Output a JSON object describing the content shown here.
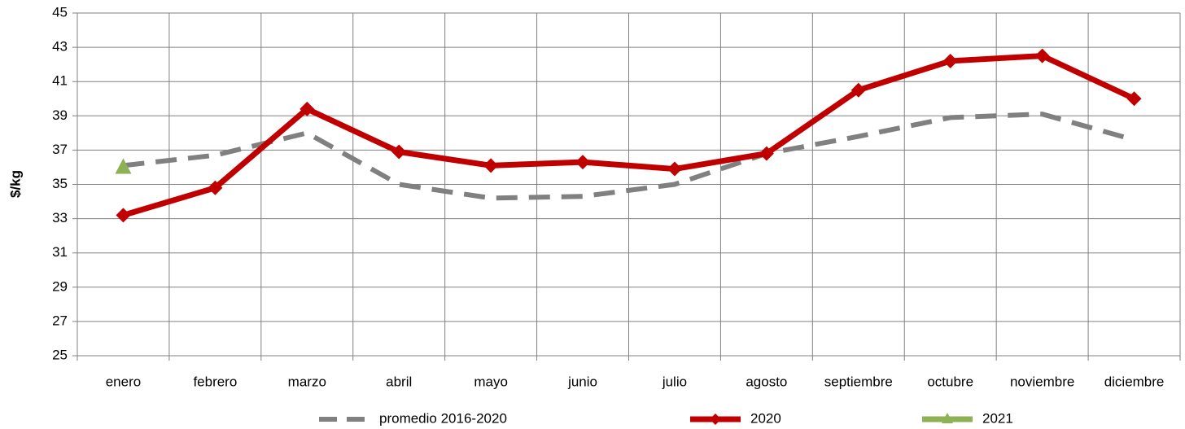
{
  "chart_data": {
    "type": "line",
    "y_label": "$/kg",
    "categories": [
      "enero",
      "febrero",
      "marzo",
      "abril",
      "mayo",
      "junio",
      "julio",
      "agosto",
      "septiembre",
      "octubre",
      "noviembre",
      "diciembre"
    ],
    "series": [
      {
        "name": "promedio 2016-2020",
        "color": "#808080",
        "dash": true,
        "marker": "none",
        "values": [
          36.1,
          36.7,
          38.0,
          35.0,
          34.2,
          34.3,
          35.0,
          36.8,
          37.8,
          38.9,
          39.1,
          37.6
        ]
      },
      {
        "name": "2020",
        "color": "#c00000",
        "dash": false,
        "marker": "diamond",
        "values": [
          33.2,
          34.8,
          39.4,
          36.9,
          36.1,
          36.3,
          35.9,
          36.8,
          40.5,
          42.2,
          42.5,
          40.0
        ]
      },
      {
        "name": "2021",
        "color": "#8db255",
        "dash": false,
        "marker": "triangle",
        "values": [
          36.0,
          null,
          null,
          null,
          null,
          null,
          null,
          null,
          null,
          null,
          null,
          null
        ]
      }
    ],
    "ylim": [
      25,
      45
    ],
    "yticks": [
      25,
      27,
      29,
      31,
      33,
      35,
      37,
      39,
      41,
      43,
      45
    ],
    "grid": true,
    "legend": "bottom"
  }
}
